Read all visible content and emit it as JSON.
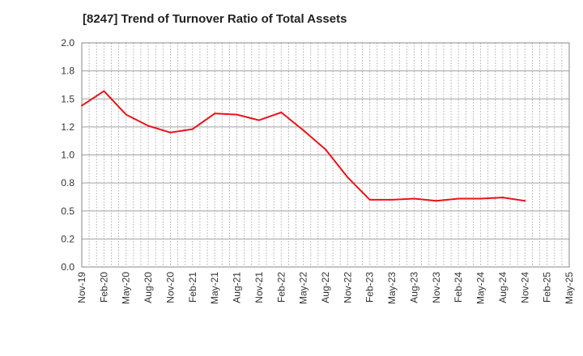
{
  "chart_data": {
    "type": "line",
    "title": "[8247]  Trend of Turnover Ratio of Total Assets",
    "xlabel": "",
    "ylabel": "",
    "ylim": [
      0.0,
      2.0
    ],
    "yticks": [
      0.0,
      0.2,
      0.5,
      0.8,
      1.0,
      1.2,
      1.5,
      1.8,
      2.0
    ],
    "ytick_labels": [
      "0.0",
      "0.2",
      "0.5",
      "0.8",
      "1.0",
      "1.2",
      "1.5",
      "1.8",
      "2.0"
    ],
    "x_tick_labels": [
      "Nov-19",
      "Feb-20",
      "May-20",
      "Aug-20",
      "Nov-20",
      "Feb-21",
      "May-21",
      "Aug-21",
      "Nov-21",
      "Feb-22",
      "May-22",
      "Aug-22",
      "Nov-22",
      "Feb-23",
      "May-23",
      "Aug-23",
      "Nov-23",
      "Feb-24",
      "May-24",
      "Aug-24",
      "Nov-24",
      "Feb-25",
      "May-25"
    ],
    "grid": true,
    "series": [
      {
        "color": "#e8141a",
        "values": [
          1.44,
          1.57,
          1.36,
          1.26,
          1.2,
          1.23,
          1.37,
          1.36,
          1.31,
          1.38,
          1.22,
          1.05,
          0.8,
          0.6,
          0.6,
          0.61,
          0.59,
          0.61,
          0.61,
          0.62,
          0.59
        ]
      }
    ]
  }
}
